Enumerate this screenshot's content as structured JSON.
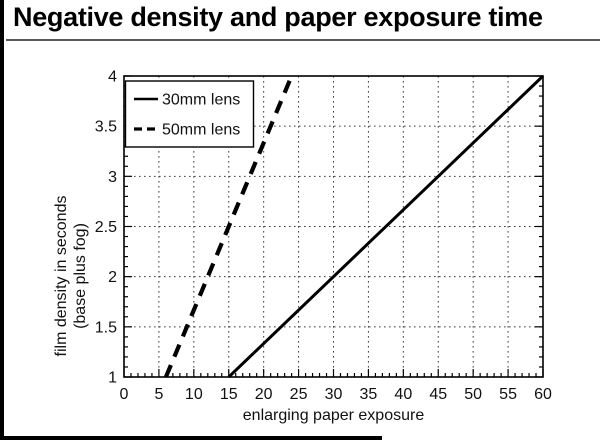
{
  "page": {
    "background": "#ffffff",
    "border_color": "#000000"
  },
  "chart_data": {
    "type": "line",
    "title": "Negative density and paper exposure time",
    "xlabel": "enlarging paper exposure",
    "ylabel_lines": [
      "film density in seconds",
      "(base plus fog)"
    ],
    "xlim": [
      0,
      60
    ],
    "ylim": [
      1,
      4
    ],
    "xticks": [
      0,
      5,
      10,
      15,
      20,
      25,
      30,
      35,
      40,
      45,
      50,
      55,
      60
    ],
    "yticks": [
      1,
      1.5,
      2,
      2.5,
      3,
      3.5,
      4
    ],
    "x_minor_step": 1,
    "y_minor_step": 0.1,
    "grid": "dotted",
    "legend": {
      "position": "top-left",
      "entries": [
        "30mm lens",
        "50mm lens"
      ]
    },
    "series": [
      {
        "name": "30mm lens",
        "line_style": "solid",
        "stroke": "#000000",
        "width": 3,
        "points": [
          [
            15,
            1
          ],
          [
            60,
            4
          ]
        ]
      },
      {
        "name": "50mm lens",
        "line_style": "dashed",
        "stroke": "#000000",
        "width": 4.2,
        "points": [
          [
            6,
            1
          ],
          [
            24,
            4
          ]
        ]
      }
    ],
    "colors": {
      "axis": "#000000",
      "grid": "#3c3c3c",
      "tick_label": "#111111"
    }
  }
}
